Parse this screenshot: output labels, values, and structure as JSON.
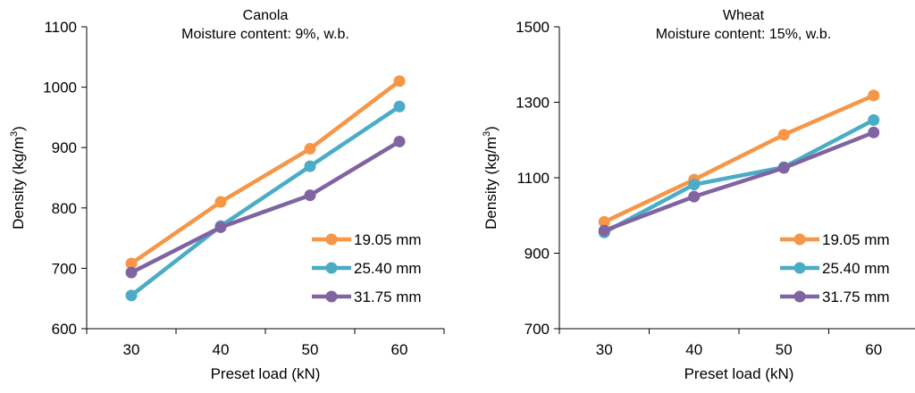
{
  "chart_data": [
    {
      "type": "line",
      "title": "Canola",
      "subtitle": "Moisture content: 9%, w.b.",
      "xlabel": "Preset load (kN)",
      "ylabel_main": "Density (kg/m",
      "ylabel_sup": "3",
      "ylabel_close": ")",
      "categories": [
        "30",
        "40",
        "50",
        "60"
      ],
      "x": [
        30,
        40,
        50,
        60
      ],
      "ylim": [
        600,
        1100
      ],
      "yticks": [
        600,
        700,
        800,
        900,
        1000,
        1100
      ],
      "grid": false,
      "legend_position": "bottom-right",
      "series": [
        {
          "name": "19.05 mm",
          "color": "#F79646",
          "values": [
            708,
            810,
            898,
            1010
          ]
        },
        {
          "name": "25.40 mm",
          "color": "#4BACC6",
          "values": [
            655,
            770,
            869,
            968
          ]
        },
        {
          "name": "31.75 mm",
          "color": "#8064A2",
          "values": [
            693,
            768,
            821,
            910
          ]
        }
      ]
    },
    {
      "type": "line",
      "title": "Wheat",
      "subtitle": "Moisture content: 15%, w.b.",
      "xlabel": "Preset load (kN)",
      "ylabel_main": "Density (kg/m",
      "ylabel_sup": "3",
      "ylabel_close": ")",
      "categories": [
        "30",
        "40",
        "50",
        "60"
      ],
      "x": [
        30,
        40,
        50,
        60
      ],
      "ylim": [
        700,
        1500
      ],
      "yticks": [
        700,
        900,
        1100,
        1300,
        1500
      ],
      "grid": false,
      "legend_position": "bottom-right",
      "series": [
        {
          "name": "19.05 mm",
          "color": "#F79646",
          "values": [
            983,
            1095,
            1214,
            1318
          ]
        },
        {
          "name": "25.40 mm",
          "color": "#4BACC6",
          "values": [
            955,
            1082,
            1128,
            1253
          ]
        },
        {
          "name": "31.75 mm",
          "color": "#8064A2",
          "values": [
            960,
            1050,
            1126,
            1220
          ]
        }
      ]
    }
  ]
}
